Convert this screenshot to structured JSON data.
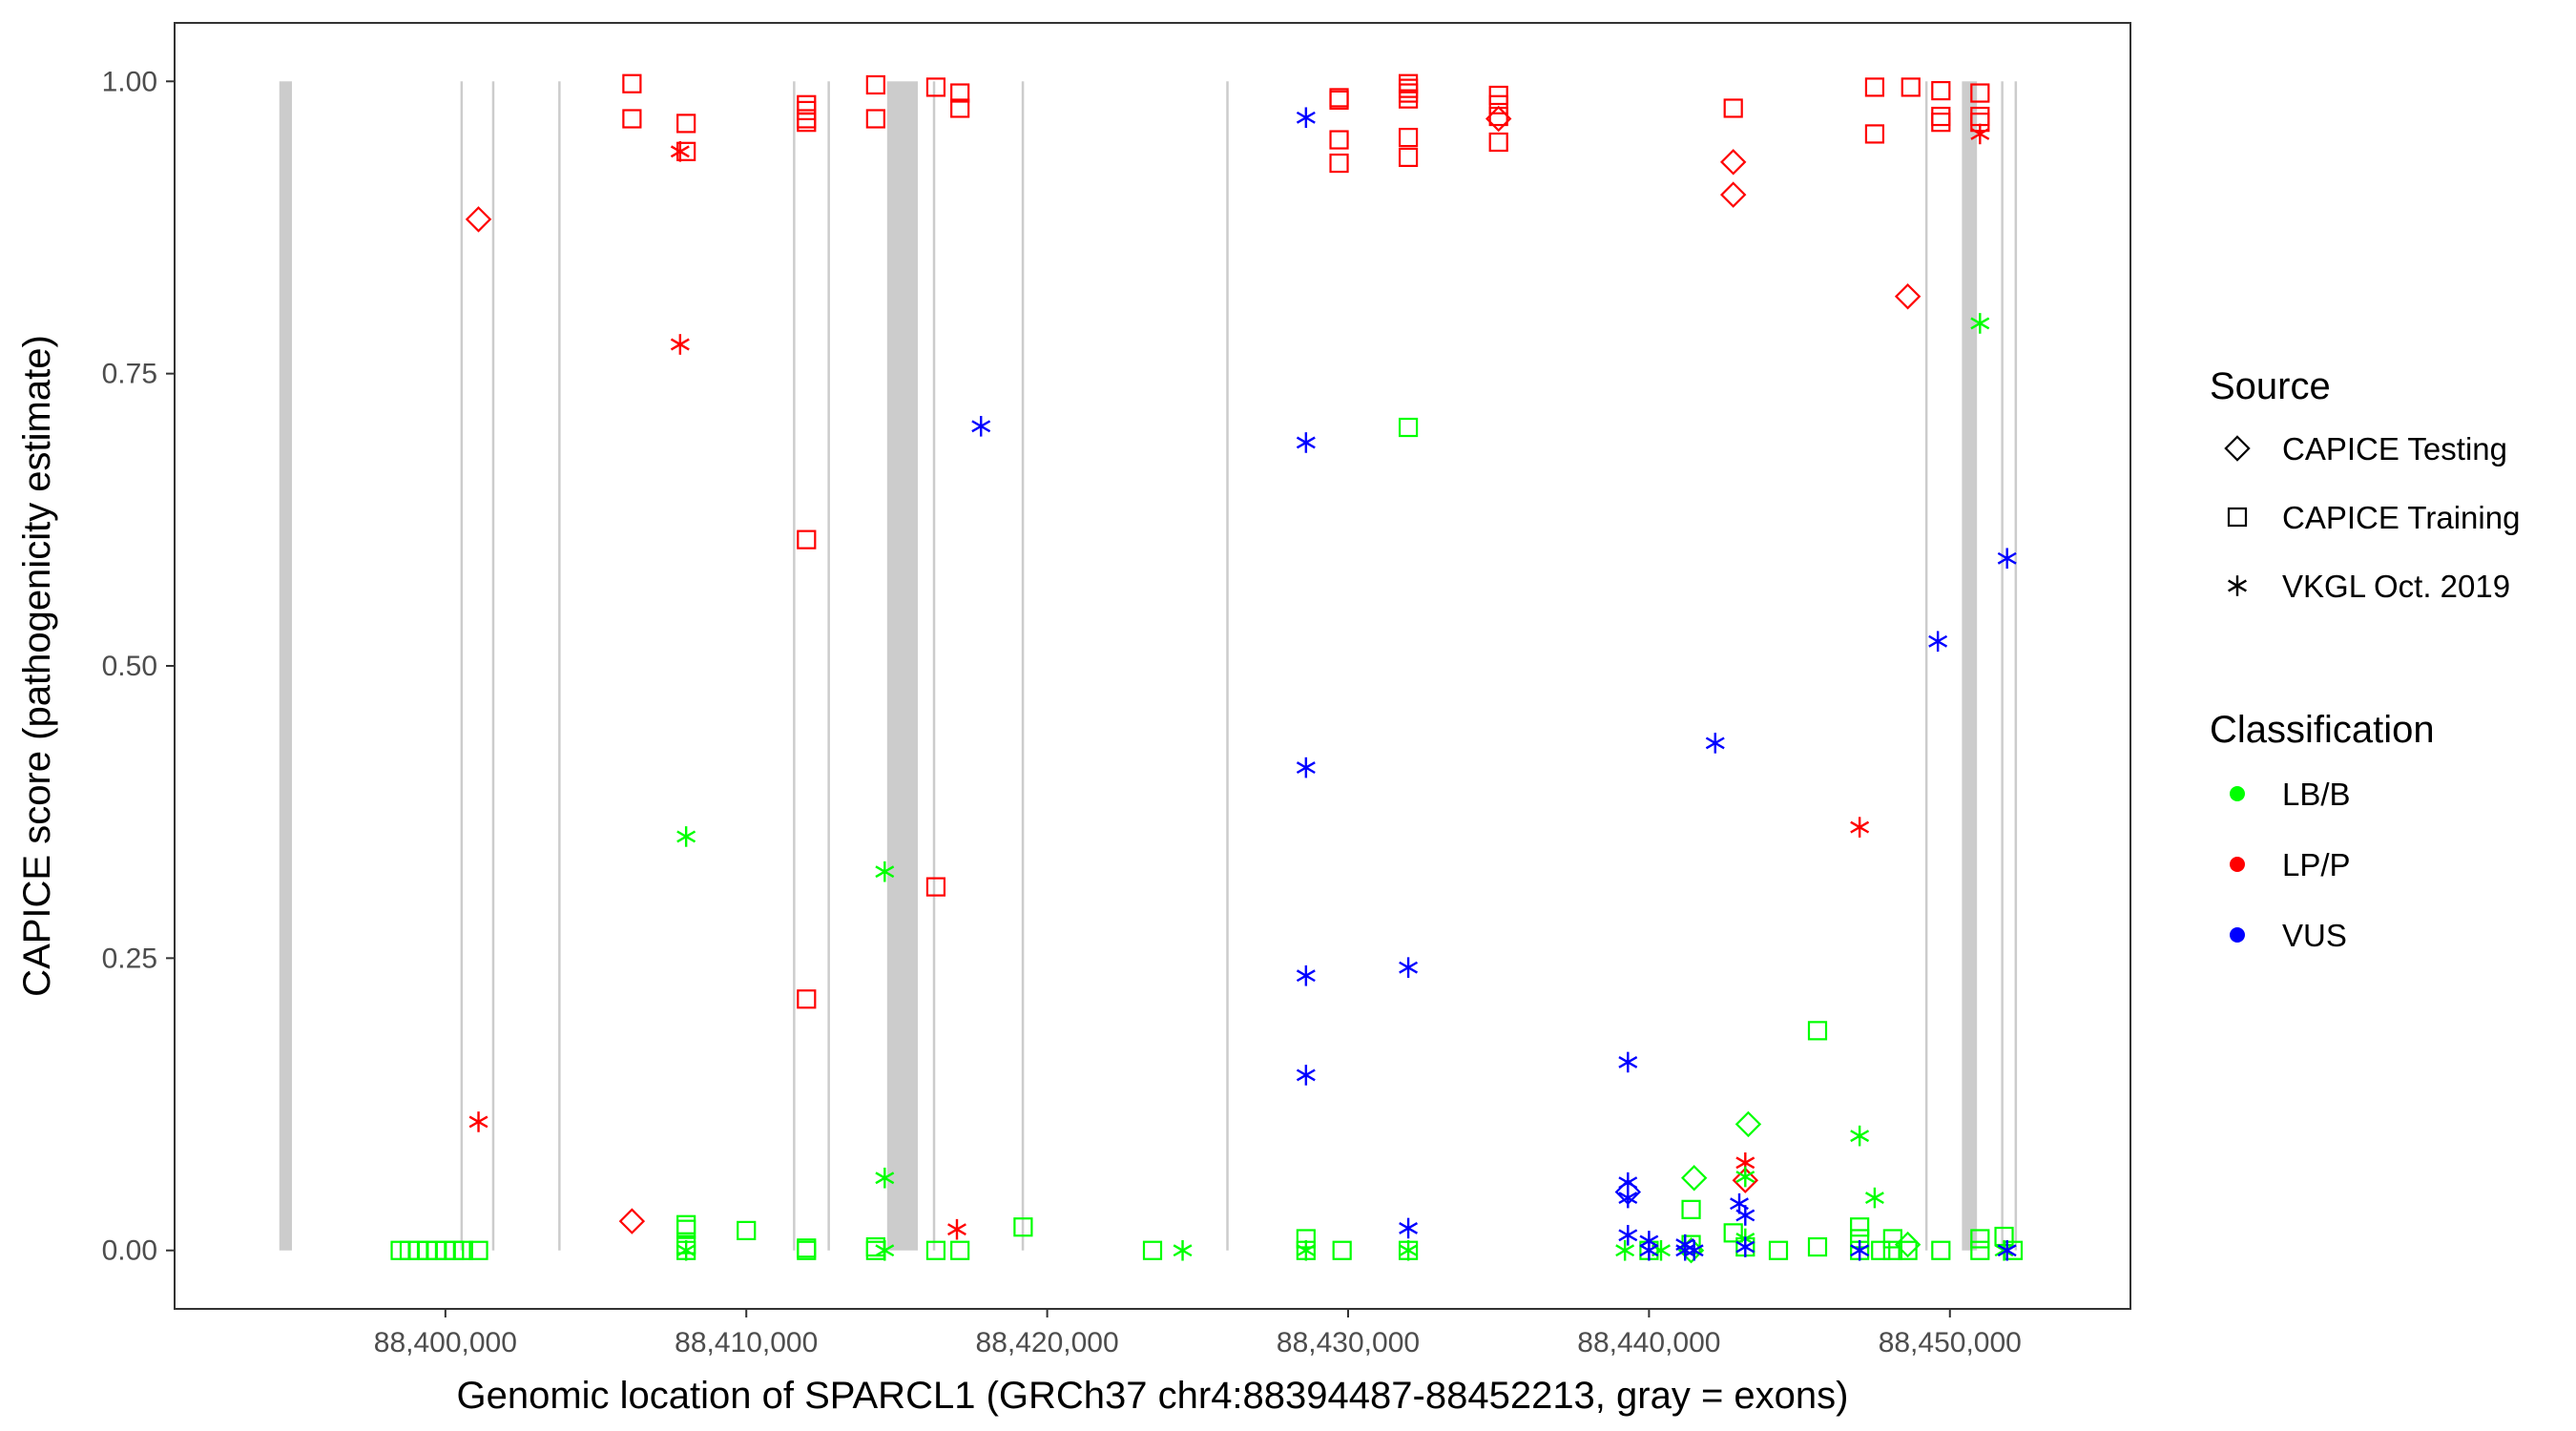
{
  "chart_data": {
    "type": "scatter",
    "title": "",
    "xlabel": "Genomic location of SPARCL1 (GRCh37 chr4:88394487-88452213, gray = exons)",
    "ylabel": "CAPICE score (pathogenicity estimate)",
    "xlim": [
      88391000,
      88456000
    ],
    "ylim": [
      -0.05,
      1.05
    ],
    "x_ticks": [
      88400000,
      88410000,
      88420000,
      88430000,
      88440000,
      88450000
    ],
    "x_tick_labels": [
      "88,400,000",
      "88,410,000",
      "88,420,000",
      "88,430,000",
      "88,440,000",
      "88,450,000"
    ],
    "y_ticks": [
      0,
      0.25,
      0.5,
      0.75,
      1
    ],
    "y_tick_labels": [
      "0.00",
      "0.25",
      "0.50",
      "0.75",
      "1.00"
    ],
    "grid": false,
    "exons": [
      [
        88394480,
        88394900
      ],
      [
        88400500,
        88400560
      ],
      [
        88401550,
        88401610
      ],
      [
        88403750,
        88403810
      ],
      [
        88411550,
        88411610
      ],
      [
        88412700,
        88412760
      ],
      [
        88414680,
        88415700
      ],
      [
        88416200,
        88416260
      ],
      [
        88419150,
        88419210
      ],
      [
        88425950,
        88426010
      ],
      [
        88449180,
        88449240
      ],
      [
        88450400,
        88450900
      ],
      [
        88451700,
        88451760
      ],
      [
        88452150,
        88452213
      ]
    ],
    "legend": {
      "placement": "right",
      "source_title": "Source",
      "source_entries": [
        {
          "label": "CAPICE Testing",
          "shape": "diamond"
        },
        {
          "label": "CAPICE Training",
          "shape": "square"
        },
        {
          "label": "VKGL Oct. 2019",
          "shape": "asterisk"
        }
      ],
      "class_title": "Classification",
      "class_entries": [
        {
          "label": "LB/B",
          "color": "#00ff00"
        },
        {
          "label": "LP/P",
          "color": "#ff0000"
        },
        {
          "label": "VUS",
          "color": "#0000ff"
        }
      ]
    },
    "series": [
      {
        "name": "LP/P - CAPICE Training",
        "classification": "LP/P",
        "source": "CAPICE Training",
        "color": "#ff0000",
        "shape": "square",
        "points": [
          [
            88406200,
            0.998
          ],
          [
            88406200,
            0.968
          ],
          [
            88408000,
            0.964
          ],
          [
            88408000,
            0.94
          ],
          [
            88412000,
            0.98
          ],
          [
            88412000,
            0.975
          ],
          [
            88412000,
            0.968
          ],
          [
            88412000,
            0.965
          ],
          [
            88412000,
            0.608
          ],
          [
            88412000,
            0.215
          ],
          [
            88414300,
            0.997
          ],
          [
            88414300,
            0.968
          ],
          [
            88416300,
            0.995
          ],
          [
            88416300,
            0.311
          ],
          [
            88417100,
            0.99
          ],
          [
            88417100,
            0.977
          ],
          [
            88429700,
            0.986
          ],
          [
            88429700,
            0.984
          ],
          [
            88429700,
            0.95
          ],
          [
            88429700,
            0.93
          ],
          [
            88432000,
            0.998
          ],
          [
            88432000,
            0.994
          ],
          [
            88432000,
            0.99
          ],
          [
            88432000,
            0.985
          ],
          [
            88432000,
            0.952
          ],
          [
            88432000,
            0.935
          ],
          [
            88435000,
            0.988
          ],
          [
            88435000,
            0.98
          ],
          [
            88435000,
            0.97
          ],
          [
            88435000,
            0.948
          ],
          [
            88442800,
            0.977
          ],
          [
            88447500,
            0.995
          ],
          [
            88447500,
            0.955
          ],
          [
            88448700,
            0.995
          ],
          [
            88449700,
            0.992
          ],
          [
            88449700,
            0.97
          ],
          [
            88449700,
            0.965
          ],
          [
            88451000,
            0.99
          ],
          [
            88451000,
            0.97
          ],
          [
            88451000,
            0.965
          ]
        ]
      },
      {
        "name": "LP/P - CAPICE Testing",
        "classification": "LP/P",
        "source": "CAPICE Testing",
        "color": "#ff0000",
        "shape": "diamond",
        "points": [
          [
            88401100,
            0.882
          ],
          [
            88406200,
            0.025
          ],
          [
            88435000,
            0.968
          ],
          [
            88442800,
            0.931
          ],
          [
            88442800,
            0.903
          ],
          [
            88448600,
            0.816
          ],
          [
            88443200,
            0.06
          ]
        ]
      },
      {
        "name": "LP/P - VKGL Oct. 2019",
        "classification": "LP/P",
        "source": "VKGL Oct. 2019",
        "color": "#ff0000",
        "shape": "asterisk",
        "points": [
          [
            88401100,
            0.11
          ],
          [
            88407800,
            0.94
          ],
          [
            88407800,
            0.775
          ],
          [
            88417000,
            0.018
          ],
          [
            88443200,
            0.075
          ],
          [
            88447000,
            0.362
          ],
          [
            88451000,
            0.955
          ]
        ]
      },
      {
        "name": "LB/B - CAPICE Training",
        "classification": "LB/B",
        "source": "CAPICE Training",
        "color": "#00ff00",
        "shape": "square",
        "points": [
          [
            88398500,
            0
          ],
          [
            88398800,
            0
          ],
          [
            88399100,
            0
          ],
          [
            88399400,
            0
          ],
          [
            88399700,
            0
          ],
          [
            88400000,
            0
          ],
          [
            88400300,
            0
          ],
          [
            88400600,
            0
          ],
          [
            88401100,
            0
          ],
          [
            88408000,
            0.022
          ],
          [
            88408000,
            0.018
          ],
          [
            88408000,
            0.005
          ],
          [
            88408000,
            0
          ],
          [
            88410000,
            0.017
          ],
          [
            88412000,
            0.002
          ],
          [
            88412000,
            0
          ],
          [
            88414300,
            0.003
          ],
          [
            88414300,
            0
          ],
          [
            88416300,
            0
          ],
          [
            88417100,
            0
          ],
          [
            88419200,
            0.02
          ],
          [
            88423500,
            0
          ],
          [
            88428600,
            0.01
          ],
          [
            88428600,
            0
          ],
          [
            88429800,
            0
          ],
          [
            88432000,
            0.704
          ],
          [
            88432000,
            0
          ],
          [
            88440000,
            0
          ],
          [
            88441400,
            0.035
          ],
          [
            88441400,
            0.005
          ],
          [
            88442800,
            0.015
          ],
          [
            88443200,
            0.003
          ],
          [
            88444300,
            0
          ],
          [
            88445600,
            0.188
          ],
          [
            88445600,
            0.003
          ],
          [
            88447000,
            0.02
          ],
          [
            88447000,
            0.01
          ],
          [
            88447000,
            0
          ],
          [
            88447700,
            0
          ],
          [
            88448100,
            0.01
          ],
          [
            88448100,
            0
          ],
          [
            88448600,
            0
          ],
          [
            88449700,
            0
          ],
          [
            88451000,
            0.01
          ],
          [
            88451000,
            0
          ],
          [
            88451800,
            0.012
          ],
          [
            88452100,
            0
          ]
        ]
      },
      {
        "name": "LB/B - CAPICE Testing",
        "classification": "LB/B",
        "source": "CAPICE Testing",
        "color": "#00ff00",
        "shape": "diamond",
        "points": [
          [
            88441500,
            0.062
          ],
          [
            88443300,
            0.108
          ],
          [
            88448600,
            0.005
          ],
          [
            88441400,
            0
          ]
        ]
      },
      {
        "name": "LB/B - VKGL Oct. 2019",
        "classification": "LB/B",
        "source": "VKGL Oct. 2019",
        "color": "#00ff00",
        "shape": "asterisk",
        "points": [
          [
            88408000,
            0.354
          ],
          [
            88408000,
            0
          ],
          [
            88414600,
            0.324
          ],
          [
            88414600,
            0.062
          ],
          [
            88414600,
            0
          ],
          [
            88424500,
            0
          ],
          [
            88428600,
            0
          ],
          [
            88432000,
            0
          ],
          [
            88439200,
            0
          ],
          [
            88440400,
            0
          ],
          [
            88443200,
            0.063
          ],
          [
            88443200,
            0.01
          ],
          [
            88447000,
            0.098
          ],
          [
            88447500,
            0.045
          ],
          [
            88451000,
            0.793
          ],
          [
            88451800,
            0
          ]
        ]
      },
      {
        "name": "VUS - VKGL Oct. 2019",
        "classification": "VUS",
        "source": "VKGL Oct. 2019",
        "color": "#0000ff",
        "shape": "asterisk",
        "points": [
          [
            88428600,
            0.969
          ],
          [
            88428600,
            0.691
          ],
          [
            88428600,
            0.413
          ],
          [
            88428600,
            0.235
          ],
          [
            88428600,
            0.15
          ],
          [
            88417800,
            0.705
          ],
          [
            88432000,
            0.242
          ],
          [
            88432000,
            0.019
          ],
          [
            88439300,
            0.161
          ],
          [
            88439300,
            0.058
          ],
          [
            88439300,
            0.045
          ],
          [
            88439300,
            0.013
          ],
          [
            88440000,
            0.008
          ],
          [
            88440000,
            0
          ],
          [
            88441200,
            0.005
          ],
          [
            88441200,
            0
          ],
          [
            88441500,
            0
          ],
          [
            88442200,
            0.434
          ],
          [
            88443000,
            0.04
          ],
          [
            88443200,
            0.03
          ],
          [
            88443200,
            0.003
          ],
          [
            88447000,
            0
          ],
          [
            88449600,
            0.521
          ],
          [
            88451900,
            0.592
          ],
          [
            88451900,
            0
          ]
        ]
      },
      {
        "name": "VUS - CAPICE Testing",
        "classification": "VUS",
        "source": "CAPICE Testing",
        "color": "#0000ff",
        "shape": "diamond",
        "points": [
          [
            88439300,
            0.05
          ]
        ]
      }
    ]
  }
}
